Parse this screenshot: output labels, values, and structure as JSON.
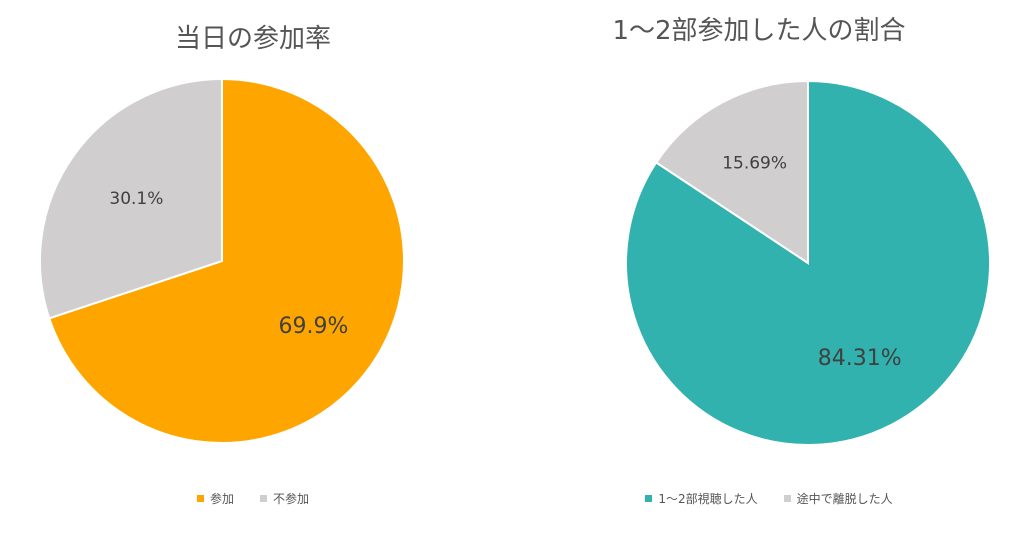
{
  "chart_data": [
    {
      "type": "pie",
      "title": "当日の参加率",
      "categories": [
        "参加",
        "不参加"
      ],
      "values": [
        69.9,
        30.1
      ],
      "data_labels": [
        "69.9%",
        "30.1%"
      ],
      "colors": [
        "#FFA500",
        "#D0CECE"
      ],
      "legend": "bottom"
    },
    {
      "type": "pie",
      "title": "1〜2部参加した人の割合",
      "categories": [
        "1〜2部視聴した人",
        "途中で離脱した人"
      ],
      "values": [
        84.31,
        15.69
      ],
      "data_labels": [
        "84.31%",
        "15.69%"
      ],
      "colors": [
        "#31B2AE",
        "#D0CECE"
      ],
      "legend": "bottom"
    }
  ]
}
